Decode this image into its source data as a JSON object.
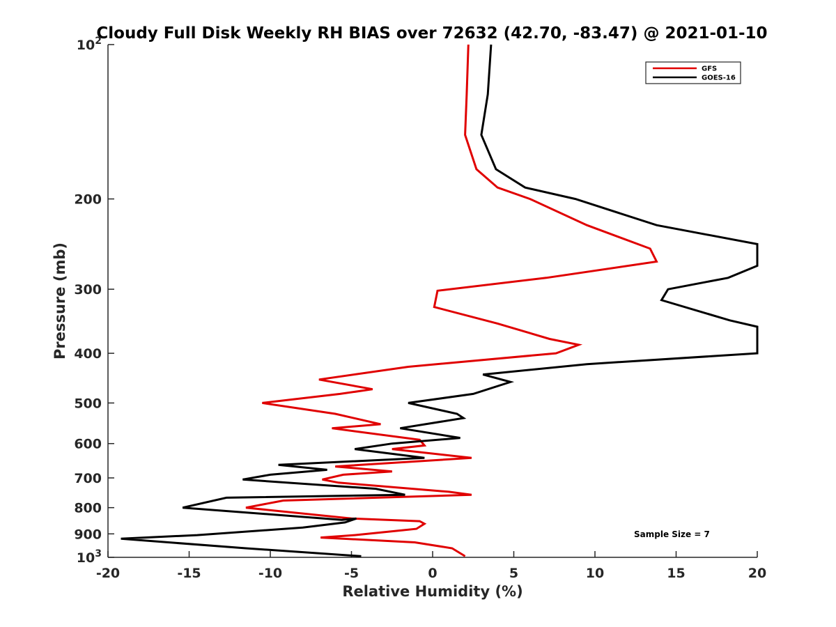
{
  "chart_data": {
    "type": "line",
    "title": "Cloudy Full Disk Weekly RH BIAS over 72632 (42.70, -83.47) @ 2021-01-10",
    "xlabel": "Relative Humidity (%)",
    "ylabel": "Pressure (mb)",
    "xlim": [
      -20,
      20
    ],
    "ylim": [
      100,
      1000
    ],
    "y_scale": "log",
    "y_reversed": true,
    "grid": false,
    "legend_position": "top-right",
    "x_ticks": [
      "-20",
      "-15",
      "-10",
      "-5",
      "0",
      "5",
      "10",
      "15",
      "20"
    ],
    "y_ticks": [
      {
        "value": 100,
        "base": "10",
        "exp": "2"
      },
      {
        "value": 200,
        "label": "200"
      },
      {
        "value": 300,
        "label": "300"
      },
      {
        "value": 400,
        "label": "400"
      },
      {
        "value": 500,
        "label": "500"
      },
      {
        "value": 600,
        "label": "600"
      },
      {
        "value": 700,
        "label": "700"
      },
      {
        "value": 800,
        "label": "800"
      },
      {
        "value": 900,
        "label": "900"
      },
      {
        "value": 1000,
        "base": "10",
        "exp": "3"
      }
    ],
    "annotation": "Sample Size = 7",
    "series": [
      {
        "name": "GFS",
        "color": "#e00000",
        "points": [
          [
            2.2,
            100
          ],
          [
            2.1,
            125
          ],
          [
            2.0,
            150
          ],
          [
            2.7,
            175
          ],
          [
            4.0,
            190
          ],
          [
            6.0,
            200
          ],
          [
            9.5,
            225
          ],
          [
            13.4,
            250
          ],
          [
            13.8,
            265
          ],
          [
            7.0,
            285
          ],
          [
            0.3,
            302
          ],
          [
            0.1,
            325
          ],
          [
            4.0,
            350
          ],
          [
            7.2,
            375
          ],
          [
            9.0,
            385
          ],
          [
            7.6,
            400
          ],
          [
            -1.5,
            425
          ],
          [
            -7.0,
            450
          ],
          [
            -3.7,
            470
          ],
          [
            -5.7,
            480
          ],
          [
            -10.5,
            500
          ],
          [
            -6.0,
            525
          ],
          [
            -3.2,
            550
          ],
          [
            -6.2,
            560
          ],
          [
            -0.8,
            590
          ],
          [
            -0.5,
            605
          ],
          [
            -2.5,
            615
          ],
          [
            2.4,
            640
          ],
          [
            -6.0,
            665
          ],
          [
            -2.5,
            680
          ],
          [
            -5.5,
            690
          ],
          [
            -6.8,
            705
          ],
          [
            -5.8,
            715
          ],
          [
            1.0,
            745
          ],
          [
            2.4,
            755
          ],
          [
            -9.2,
            775
          ],
          [
            -11.5,
            800
          ],
          [
            -5.0,
            840
          ],
          [
            -0.8,
            850
          ],
          [
            -0.5,
            860
          ],
          [
            -1.0,
            880
          ],
          [
            -4.8,
            905
          ],
          [
            -6.9,
            915
          ],
          [
            -1.1,
            935
          ],
          [
            1.2,
            960
          ],
          [
            2.0,
            995
          ]
        ]
      },
      {
        "name": "GOES-16",
        "color": "#000000",
        "points": [
          [
            3.6,
            100
          ],
          [
            3.4,
            125
          ],
          [
            3.0,
            150
          ],
          [
            3.9,
            175
          ],
          [
            5.7,
            190
          ],
          [
            8.8,
            200
          ],
          [
            13.8,
            225
          ],
          [
            20.0,
            245
          ],
          [
            20.0,
            270
          ],
          [
            18.2,
            285
          ],
          [
            14.5,
            300
          ],
          [
            14.1,
            315
          ],
          [
            18.3,
            345
          ],
          [
            20.0,
            355
          ],
          [
            20.0,
            400
          ],
          [
            9.5,
            420
          ],
          [
            3.1,
            440
          ],
          [
            4.8,
            455
          ],
          [
            2.5,
            480
          ],
          [
            -1.5,
            500
          ],
          [
            1.5,
            525
          ],
          [
            1.9,
            535
          ],
          [
            -2.0,
            560
          ],
          [
            1.7,
            585
          ],
          [
            -2.5,
            600
          ],
          [
            -4.8,
            615
          ],
          [
            -0.5,
            640
          ],
          [
            -9.5,
            660
          ],
          [
            -6.5,
            675
          ],
          [
            -10.0,
            690
          ],
          [
            -11.7,
            705
          ],
          [
            -3.5,
            735
          ],
          [
            -1.7,
            755
          ],
          [
            -12.7,
            765
          ],
          [
            -15.4,
            800
          ],
          [
            -5.6,
            845
          ],
          [
            -4.7,
            840
          ],
          [
            -5.4,
            855
          ],
          [
            -8.0,
            875
          ],
          [
            -14.5,
            905
          ],
          [
            -19.2,
            920
          ],
          [
            -11.5,
            960
          ],
          [
            -4.4,
            995
          ]
        ]
      }
    ]
  }
}
